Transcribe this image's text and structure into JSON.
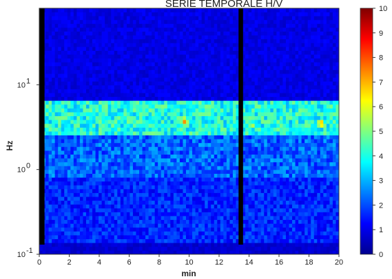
{
  "chart_data": {
    "type": "heatmap",
    "title": "SERIE TEMPORALE H/V",
    "xlabel": "min",
    "ylabel": "Hz",
    "xlim": [
      0,
      20
    ],
    "ylim": [
      0.1,
      80
    ],
    "y_scale": "log",
    "x_ticks": [
      "0",
      "2",
      "4",
      "6",
      "8",
      "10",
      "12",
      "14",
      "16",
      "18",
      "20"
    ],
    "y_ticks": [
      {
        "base": "10",
        "exp": "-1",
        "value": 0.1
      },
      {
        "base": "10",
        "exp": "0",
        "value": 1
      },
      {
        "base": "10",
        "exp": "1",
        "value": 10
      }
    ],
    "colorbar": {
      "min": 0,
      "max": 10,
      "ticks": [
        "0",
        "1",
        "2",
        "3",
        "4",
        "5",
        "6",
        "7",
        "8",
        "9",
        "10"
      ]
    },
    "gaps_min": [
      [
        0,
        0.35
      ],
      [
        13.3,
        13.6
      ]
    ],
    "hot_spots": [
      {
        "x_min": 9.7,
        "freq_hz": 3.8,
        "value": 8
      },
      {
        "x_min": 14.2,
        "freq_hz": 3.4,
        "value": 6
      },
      {
        "x_min": 18.8,
        "freq_hz": 3.5,
        "value": 8
      }
    ],
    "resonance_band_hz": [
      2.5,
      5.5
    ]
  }
}
